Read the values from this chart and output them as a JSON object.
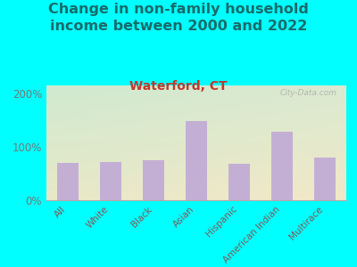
{
  "title": "Change in non-family household\nincome between 2000 and 2022",
  "subtitle": "Waterford, CT",
  "categories": [
    "All",
    "White",
    "Black",
    "Asian",
    "Hispanic",
    "American Indian",
    "Multirace"
  ],
  "values": [
    70,
    72,
    75,
    148,
    68,
    128,
    80
  ],
  "bar_color": "#c4afd4",
  "title_fontsize": 11.5,
  "subtitle_fontsize": 10,
  "subtitle_color": "#c0392b",
  "title_color": "#1a6b6b",
  "ylabel_ticks": [
    "0%",
    "100%",
    "200%"
  ],
  "yticks": [
    0,
    100,
    200
  ],
  "ylim": [
    0,
    215
  ],
  "background_outer": "#00ffff",
  "watermark": "City-Data.com",
  "tick_label_color": "#885555",
  "ytick_color": "#777777"
}
